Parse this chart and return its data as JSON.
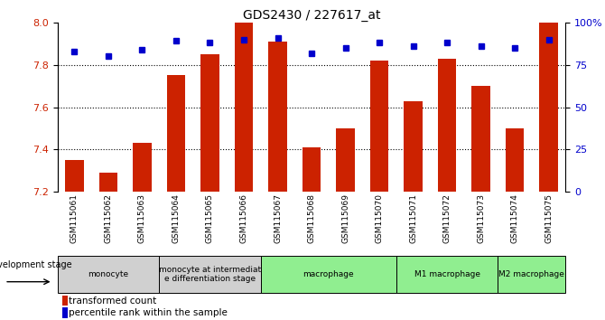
{
  "title": "GDS2430 / 227617_at",
  "samples": [
    "GSM115061",
    "GSM115062",
    "GSM115063",
    "GSM115064",
    "GSM115065",
    "GSM115066",
    "GSM115067",
    "GSM115068",
    "GSM115069",
    "GSM115070",
    "GSM115071",
    "GSM115072",
    "GSM115073",
    "GSM115074",
    "GSM115075"
  ],
  "bar_values": [
    7.35,
    7.29,
    7.43,
    7.75,
    7.85,
    8.0,
    7.91,
    7.41,
    7.5,
    7.82,
    7.63,
    7.83,
    7.7,
    7.5,
    8.0
  ],
  "percentile_values": [
    83,
    80,
    84,
    89,
    88,
    90,
    91,
    82,
    85,
    88,
    86,
    88,
    86,
    85,
    90
  ],
  "ylim_left": [
    7.2,
    8.0
  ],
  "ylim_right": [
    0,
    100
  ],
  "yticks_left": [
    7.2,
    7.4,
    7.6,
    7.8,
    8.0
  ],
  "yticks_right": [
    0,
    25,
    50,
    75,
    100
  ],
  "ytick_labels_right": [
    "0",
    "25",
    "50",
    "75",
    "100%"
  ],
  "bar_color": "#cc2200",
  "percentile_color": "#0000cc",
  "groups": [
    {
      "label": "monocyte",
      "start": 0,
      "end": 2,
      "color": "#d0d0d0"
    },
    {
      "label": "monocyte at intermediat\ne differentiation stage",
      "start": 3,
      "end": 5,
      "color": "#d0d0d0"
    },
    {
      "label": "macrophage",
      "start": 6,
      "end": 9,
      "color": "#90ee90"
    },
    {
      "label": "M1 macrophage",
      "start": 10,
      "end": 12,
      "color": "#90ee90"
    },
    {
      "label": "M2 macrophage",
      "start": 13,
      "end": 14,
      "color": "#90ee90"
    }
  ],
  "dev_stage_label": "development stage",
  "legend_bar": "transformed count",
  "legend_percentile": "percentile rank within the sample",
  "tick_label_color_left": "#cc2200",
  "tick_label_color_right": "#0000cc",
  "grid_yticks": [
    7.4,
    7.6,
    7.8
  ]
}
